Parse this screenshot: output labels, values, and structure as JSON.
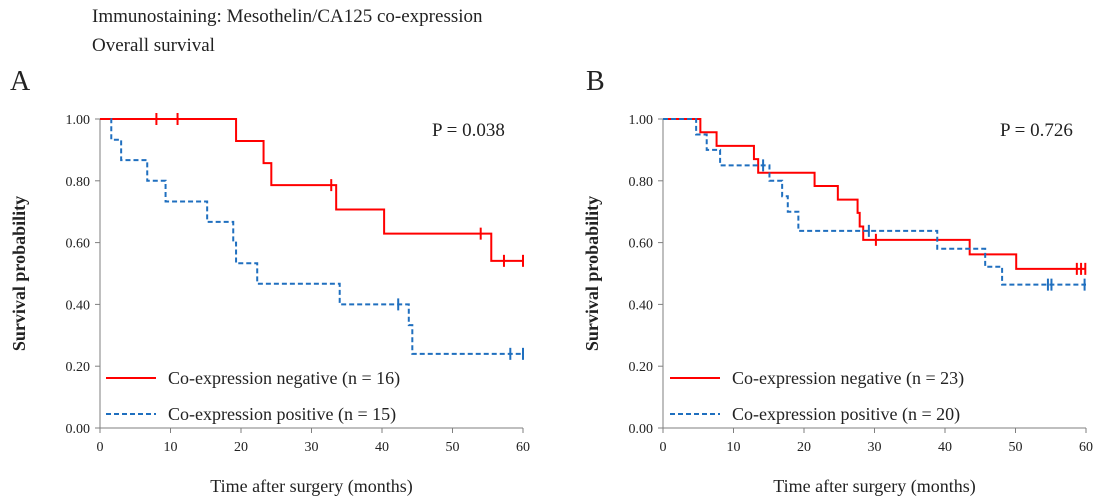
{
  "header": {
    "title": "Immunostaining: Mesothelin/CA125 co-expression",
    "subtitle": "Overall survival"
  },
  "colors": {
    "negative": "#ff0000",
    "positive": "#1f6fbf",
    "axis": "#7f7f7f"
  },
  "chart_data": [
    {
      "type": "line",
      "subtype": "kaplan-meier step",
      "panel_label": "A",
      "annotation": "P = 0.038",
      "xlabel": "Time after surgery (months)",
      "ylabel": "Survival probability",
      "xlim": [
        0,
        60
      ],
      "ylim": [
        0,
        1
      ],
      "x_ticks": [
        "0",
        "10",
        "20",
        "30",
        "40",
        "50",
        "60"
      ],
      "y_ticks": [
        "0.00",
        "0.20",
        "0.40",
        "0.60",
        "0.80",
        "1.00"
      ],
      "legend_position": "bottom-left",
      "series": [
        {
          "name": "Co-expression negative (n = 16)",
          "style": "solid",
          "x": [
            0,
            19.3,
            23.2,
            24.3,
            33.5,
            40.3,
            55.5,
            60
          ],
          "y": [
            1.0,
            0.929,
            0.857,
            0.786,
            0.707,
            0.629,
            0.541,
            0.541
          ],
          "censor_x": [
            8,
            11,
            32.8,
            54,
            57.3,
            60
          ],
          "censor_y": [
            1.0,
            1.0,
            0.786,
            0.629,
            0.541,
            0.541
          ]
        },
        {
          "name": "Co-expression positive (n = 15)",
          "style": "dashed",
          "x": [
            1.5,
            1.6,
            3.0,
            6.7,
            9.3,
            15.2,
            18.9,
            19.3,
            22.3,
            34.0,
            43.8,
            44.3,
            60
          ],
          "y": [
            1.0,
            0.933,
            0.867,
            0.8,
            0.733,
            0.667,
            0.6,
            0.533,
            0.467,
            0.4,
            0.333,
            0.24,
            0.24
          ],
          "censor_x": [
            42.3,
            58.2,
            60
          ],
          "censor_y": [
            0.4,
            0.24,
            0.24
          ]
        }
      ]
    },
    {
      "type": "line",
      "subtype": "kaplan-meier step",
      "panel_label": "B",
      "annotation": "P = 0.726",
      "xlabel": "Time after surgery (months)",
      "ylabel": "Survival probability",
      "xlim": [
        0,
        60
      ],
      "ylim": [
        0,
        1
      ],
      "x_ticks": [
        "0",
        "10",
        "20",
        "30",
        "40",
        "50",
        "60"
      ],
      "y_ticks": [
        "0.00",
        "0.20",
        "0.40",
        "0.60",
        "0.80",
        "1.00"
      ],
      "legend_position": "bottom-left",
      "series": [
        {
          "name": "Co-expression negative (n = 23)",
          "style": "solid",
          "x": [
            0,
            5.3,
            7.6,
            12.9,
            13.5,
            21.5,
            24.8,
            27.6,
            27.9,
            28.4,
            43.5,
            50.1,
            60
          ],
          "y": [
            1.0,
            0.957,
            0.913,
            0.87,
            0.826,
            0.783,
            0.739,
            0.696,
            0.652,
            0.609,
            0.562,
            0.515,
            0.515
          ],
          "censor_x": [
            30.2,
            58.7,
            59.3,
            59.9
          ],
          "censor_y": [
            0.609,
            0.515,
            0.515,
            0.515
          ]
        },
        {
          "name": "Co-expression positive (n = 20)",
          "style": "dashed",
          "x": [
            0,
            4.7,
            6.2,
            8.1,
            13.7,
            15.1,
            16.9,
            17.7,
            19.2,
            38.9,
            45.7,
            48.1,
            60
          ],
          "y": [
            1.0,
            0.95,
            0.9,
            0.85,
            0.85,
            0.8,
            0.75,
            0.7,
            0.638,
            0.58,
            0.522,
            0.464,
            0.464
          ],
          "censor_x": [
            14.2,
            29.2,
            54.6,
            55.1,
            59.8
          ],
          "censor_y": [
            0.85,
            0.638,
            0.464,
            0.464,
            0.464
          ]
        }
      ]
    }
  ]
}
